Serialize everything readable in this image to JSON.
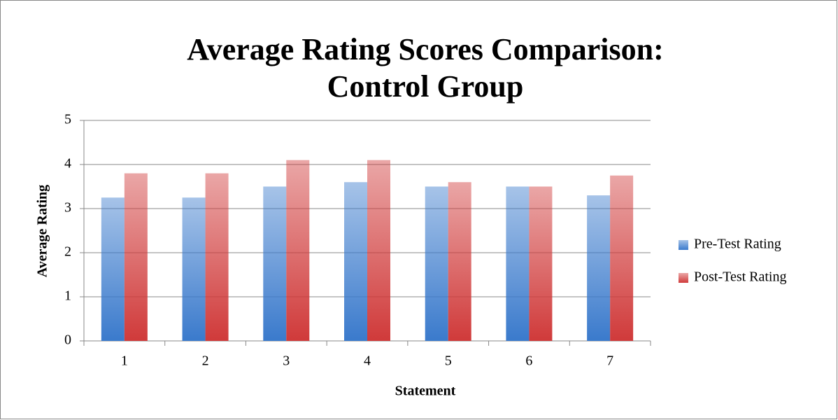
{
  "chart_data": {
    "type": "bar",
    "title": [
      "Average Rating Scores Comparison:",
      "Control Group"
    ],
    "x_label": "Statement",
    "y_label": "Average Rating",
    "categories": [
      "1",
      "2",
      "3",
      "4",
      "5",
      "6",
      "7"
    ],
    "series": [
      {
        "name": "Pre-Test Rating",
        "color": "#3a7acc",
        "values": [
          3.25,
          3.25,
          3.5,
          3.6,
          3.5,
          3.5,
          3.3
        ]
      },
      {
        "name": "Post-Test Rating",
        "color": "#d03a3a",
        "values": [
          3.8,
          3.8,
          4.1,
          4.1,
          3.6,
          3.5,
          3.75
        ]
      }
    ],
    "ylim": [
      0,
      5
    ],
    "yticks": [
      0,
      1,
      2,
      3,
      4,
      5
    ],
    "grid": true,
    "legend": "right"
  }
}
